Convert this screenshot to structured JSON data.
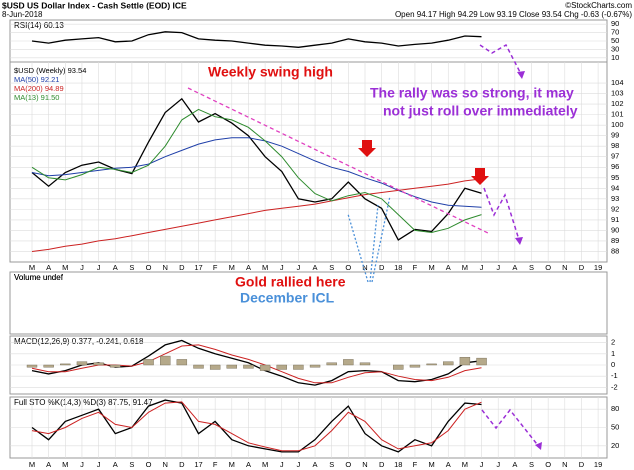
{
  "header": {
    "title": "$USD US Dollar Index - Cash Settle (EOD) ICE",
    "credit": "©StockCharts.com",
    "date": "8-Jun-2018",
    "quote": "Open 94.17 High 94.29 Low 93.19 Close 93.54 Chg -0.63 (-0.67%)"
  },
  "annotations": [
    "Weekly swing high",
    "The rally was so strong, it may",
    "not just roll over immediately",
    "Gold rallied here",
    "December ICL"
  ],
  "chart_data": [
    {
      "type": "line",
      "title": "RSI(14) 60.13",
      "ylim": [
        0,
        100
      ],
      "yticks": [
        10,
        30,
        50,
        70,
        90
      ],
      "grid": true,
      "series": [
        {
          "name": null,
          "color": "#000000",
          "values": [
            50,
            45,
            52,
            55,
            58,
            48,
            50,
            65,
            72,
            70,
            55,
            52,
            50,
            45,
            40,
            38,
            35,
            40,
            45,
            55,
            48,
            45,
            38,
            42,
            45,
            52,
            62,
            60.13,
            null,
            null,
            null,
            null,
            null,
            null,
            null
          ]
        }
      ]
    },
    {
      "type": "line",
      "ylim": [
        87,
        106
      ],
      "yticks": [
        88,
        89,
        90,
        91,
        92,
        93,
        94,
        95,
        96,
        97,
        98,
        99,
        100,
        101,
        102,
        103,
        104
      ],
      "grid": true,
      "categories": [
        "M",
        "A",
        "M",
        "J",
        "J",
        "A",
        "S",
        "O",
        "N",
        "D",
        "17",
        "F",
        "M",
        "A",
        "M",
        "J",
        "J",
        "A",
        "S",
        "O",
        "N",
        "D",
        "18",
        "F",
        "M",
        "A",
        "M",
        "J",
        "J",
        "A",
        "S",
        "O",
        "N",
        "D",
        "19"
      ],
      "series": [
        {
          "name": "$USD (Weekly) 93.54",
          "color": "#000000",
          "values": [
            95.5,
            94.2,
            95.5,
            96.2,
            96.5,
            95.8,
            95.4,
            98.4,
            101.2,
            102.5,
            100.3,
            101.1,
            100.2,
            99.0,
            97.0,
            95.6,
            93.0,
            92.7,
            93.0,
            94.6,
            93.0,
            92.1,
            89.1,
            90.1,
            89.9,
            91.6,
            94.0,
            93.54,
            null,
            null,
            null,
            null,
            null,
            null,
            null
          ]
        },
        {
          "name": "MA(50) 92.21",
          "color": "#1f3fa8",
          "values": [
            95.5,
            95.2,
            95.3,
            95.5,
            95.7,
            95.9,
            96,
            96.3,
            97,
            97.6,
            98.2,
            98.6,
            98.8,
            98.8,
            98.5,
            98,
            97.3,
            96.6,
            96,
            95.6,
            95,
            94.5,
            93.8,
            93.2,
            92.7,
            92.4,
            92.3,
            92.21,
            null,
            null,
            null,
            null,
            null,
            null,
            null
          ]
        },
        {
          "name": "MA(200) 94.89",
          "color": "#cc2222",
          "values": [
            88,
            88.2,
            88.5,
            88.7,
            89,
            89.2,
            89.5,
            89.8,
            90.1,
            90.4,
            90.7,
            91,
            91.3,
            91.6,
            91.9,
            92.1,
            92.3,
            92.5,
            92.8,
            93.1,
            93.4,
            93.6,
            93.8,
            94,
            94.2,
            94.4,
            94.7,
            94.89,
            null,
            null,
            null,
            null,
            null,
            null,
            null
          ]
        },
        {
          "name": "MA(13) 91.50",
          "color": "#2e8b2e",
          "values": [
            96,
            95,
            94.8,
            95.3,
            96,
            95.8,
            95.5,
            96.2,
            98,
            100.5,
            101.5,
            100.8,
            100.5,
            99.8,
            98.5,
            97,
            95,
            93.5,
            92.8,
            93.3,
            93.6,
            93,
            91.5,
            90,
            89.8,
            90.2,
            91,
            91.5,
            null,
            null,
            null,
            null,
            null,
            null,
            null
          ]
        }
      ]
    },
    {
      "type": "volume",
      "title": "Volume undef"
    },
    {
      "type": "line",
      "title": "MACD(12,26,9) 0.377, -0.241, 0.618",
      "ylim": [
        -2.6,
        2.6
      ],
      "yticks": [
        -2,
        -1,
        0,
        1,
        2
      ],
      "grid": true,
      "series": [
        {
          "name": null,
          "color": "#000000",
          "values": [
            -0.5,
            -0.8,
            -0.5,
            0,
            0.2,
            -0.2,
            -0.1,
            0.8,
            1.8,
            2.2,
            1.5,
            1.0,
            0.6,
            0.2,
            -0.5,
            -1.0,
            -1.6,
            -1.8,
            -1.4,
            -0.6,
            -0.5,
            -0.6,
            -1.4,
            -1.5,
            -1.3,
            -0.8,
            0.2,
            0.377,
            null,
            null,
            null,
            null,
            null,
            null,
            null
          ]
        },
        {
          "name": null,
          "color": "#cc2222",
          "values": [
            -0.3,
            -0.6,
            -0.6,
            -0.3,
            0,
            0,
            -0.1,
            0.3,
            1.0,
            1.7,
            1.8,
            1.4,
            0.9,
            0.5,
            0,
            -0.6,
            -1.2,
            -1.6,
            -1.6,
            -1.1,
            -0.7,
            -0.6,
            -1.0,
            -1.3,
            -1.4,
            -1.1,
            -0.5,
            -0.241,
            null,
            null,
            null,
            null,
            null,
            null,
            null
          ]
        },
        {
          "name": null,
          "color": "#b5a98a",
          "style": "bar",
          "values": [
            -0.2,
            -0.2,
            0.1,
            0.3,
            0.2,
            -0.2,
            0,
            0.5,
            0.8,
            0.5,
            -0.3,
            -0.4,
            -0.3,
            -0.3,
            -0.5,
            -0.4,
            -0.4,
            -0.2,
            0.2,
            0.5,
            0.2,
            0,
            -0.4,
            -0.2,
            0.1,
            0.3,
            0.7,
            0.618,
            null,
            null,
            null,
            null,
            null,
            null,
            null
          ]
        }
      ]
    },
    {
      "type": "line",
      "title": "Full STO %K(14,3) %D(3) 87.75, 91.47",
      "ylim": [
        0,
        100
      ],
      "yticks": [
        20,
        50,
        80
      ],
      "grid": true,
      "categories": [
        "M",
        "A",
        "M",
        "J",
        "J",
        "A",
        "S",
        "O",
        "N",
        "D",
        "17",
        "F",
        "M",
        "A",
        "M",
        "J",
        "J",
        "A",
        "S",
        "O",
        "N",
        "D",
        "18",
        "F",
        "M",
        "A",
        "M",
        "J",
        "J",
        "A",
        "S",
        "O",
        "N",
        "D",
        "19"
      ],
      "series": [
        {
          "name": null,
          "color": "#000000",
          "values": [
            50,
            30,
            60,
            70,
            80,
            40,
            50,
            85,
            95,
            90,
            40,
            60,
            30,
            20,
            15,
            10,
            10,
            30,
            60,
            85,
            40,
            20,
            10,
            30,
            20,
            60,
            90,
            87.75,
            null,
            null,
            null,
            null,
            null,
            null,
            null
          ]
        },
        {
          "name": null,
          "color": "#cc2222",
          "values": [
            45,
            40,
            50,
            65,
            75,
            55,
            50,
            75,
            90,
            92,
            60,
            55,
            40,
            25,
            18,
            12,
            12,
            20,
            45,
            75,
            60,
            30,
            15,
            20,
            25,
            45,
            80,
            91.47,
            null,
            null,
            null,
            null,
            null,
            null,
            null
          ]
        }
      ]
    }
  ]
}
